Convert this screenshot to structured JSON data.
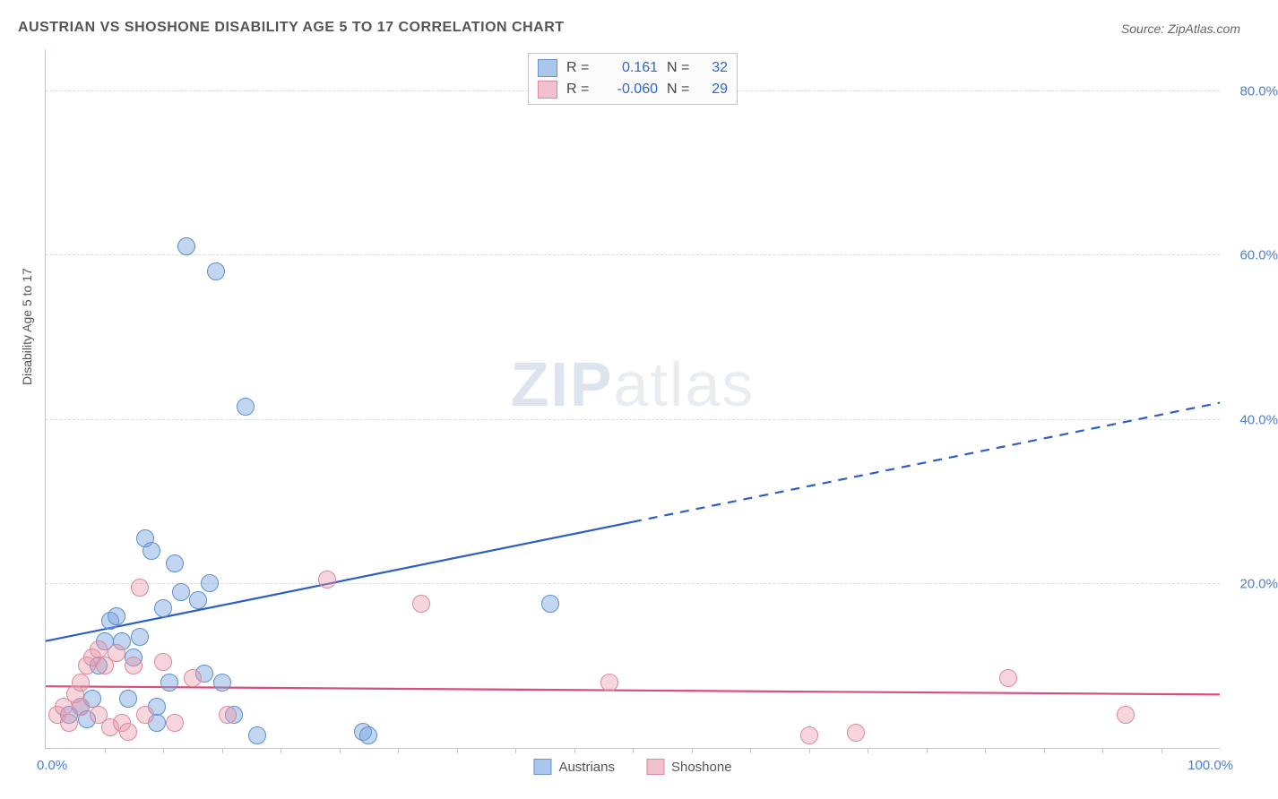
{
  "title": "AUSTRIAN VS SHOSHONE DISABILITY AGE 5 TO 17 CORRELATION CHART",
  "source": "Source: ZipAtlas.com",
  "y_axis_label": "Disability Age 5 to 17",
  "watermark_a": "ZIP",
  "watermark_b": "atlas",
  "chart": {
    "type": "scatter",
    "xlim": [
      0,
      100
    ],
    "ylim": [
      0,
      85
    ],
    "x_min_label": "0.0%",
    "x_max_label": "100.0%",
    "y_ticks": [
      {
        "v": 20,
        "label": "20.0%"
      },
      {
        "v": 40,
        "label": "40.0%"
      },
      {
        "v": 60,
        "label": "60.0%"
      },
      {
        "v": 80,
        "label": "80.0%"
      }
    ],
    "x_tick_step": 5,
    "grid_color": "#dcdcdc",
    "background_color": "#ffffff",
    "marker_radius": 9,
    "marker_border_width": 1,
    "series": [
      {
        "name": "Austrians",
        "fill": "rgba(120,165,225,0.45)",
        "stroke": "#5f8fce",
        "swatch_fill": "#aac6ea",
        "swatch_stroke": "#6a93cf",
        "r_value": "0.161",
        "n_value": "32",
        "trend": {
          "color": "#2b5fc1",
          "width": 2.2,
          "solid_from": {
            "x": 0,
            "y": 13
          },
          "solid_to": {
            "x": 50,
            "y": 27.5
          },
          "dashed_to": {
            "x": 100,
            "y": 42
          }
        },
        "points": [
          {
            "x": 2,
            "y": 4
          },
          {
            "x": 3,
            "y": 5
          },
          {
            "x": 3.5,
            "y": 3.5
          },
          {
            "x": 4,
            "y": 6
          },
          {
            "x": 4.5,
            "y": 10
          },
          {
            "x": 5,
            "y": 13
          },
          {
            "x": 5.5,
            "y": 15.5
          },
          {
            "x": 6,
            "y": 16
          },
          {
            "x": 6.5,
            "y": 13
          },
          {
            "x": 7,
            "y": 6
          },
          {
            "x": 7.5,
            "y": 11
          },
          {
            "x": 8,
            "y": 13.5
          },
          {
            "x": 8.5,
            "y": 25.5
          },
          {
            "x": 9,
            "y": 24
          },
          {
            "x": 9.5,
            "y": 5
          },
          {
            "x": 9.5,
            "y": 3
          },
          {
            "x": 10,
            "y": 17
          },
          {
            "x": 10.5,
            "y": 8
          },
          {
            "x": 11,
            "y": 22.5
          },
          {
            "x": 11.5,
            "y": 19
          },
          {
            "x": 12,
            "y": 61
          },
          {
            "x": 13,
            "y": 18
          },
          {
            "x": 13.5,
            "y": 9
          },
          {
            "x": 14,
            "y": 20
          },
          {
            "x": 14.5,
            "y": 58
          },
          {
            "x": 15,
            "y": 8
          },
          {
            "x": 16,
            "y": 4
          },
          {
            "x": 17,
            "y": 41.5
          },
          {
            "x": 18,
            "y": 1.5
          },
          {
            "x": 27,
            "y": 2
          },
          {
            "x": 27.5,
            "y": 1.5
          },
          {
            "x": 43,
            "y": 17.5
          }
        ]
      },
      {
        "name": "Shoshone",
        "fill": "rgba(235,150,170,0.40)",
        "stroke": "#d98aa0",
        "swatch_fill": "#f2c1cd",
        "swatch_stroke": "#d98aa0",
        "r_value": "-0.060",
        "n_value": "29",
        "trend": {
          "color": "#d84e78",
          "width": 2.2,
          "solid_from": {
            "x": 0,
            "y": 7.5
          },
          "solid_to": {
            "x": 100,
            "y": 6.5
          },
          "dashed_to": null
        },
        "points": [
          {
            "x": 1,
            "y": 4
          },
          {
            "x": 1.5,
            "y": 5
          },
          {
            "x": 2,
            "y": 3
          },
          {
            "x": 2.5,
            "y": 6.5
          },
          {
            "x": 3,
            "y": 8
          },
          {
            "x": 3,
            "y": 5
          },
          {
            "x": 3.5,
            "y": 10
          },
          {
            "x": 4,
            "y": 11
          },
          {
            "x": 4.5,
            "y": 4
          },
          {
            "x": 4.5,
            "y": 12
          },
          {
            "x": 5,
            "y": 10
          },
          {
            "x": 5.5,
            "y": 2.5
          },
          {
            "x": 6,
            "y": 11.5
          },
          {
            "x": 6.5,
            "y": 3
          },
          {
            "x": 7,
            "y": 2
          },
          {
            "x": 7.5,
            "y": 10
          },
          {
            "x": 8,
            "y": 19.5
          },
          {
            "x": 8.5,
            "y": 4
          },
          {
            "x": 10,
            "y": 10.5
          },
          {
            "x": 11,
            "y": 3
          },
          {
            "x": 12.5,
            "y": 8.5
          },
          {
            "x": 15.5,
            "y": 4
          },
          {
            "x": 24,
            "y": 20.5
          },
          {
            "x": 32,
            "y": 17.5
          },
          {
            "x": 48,
            "y": 8
          },
          {
            "x": 65,
            "y": 1.5
          },
          {
            "x": 69,
            "y": 1.8
          },
          {
            "x": 82,
            "y": 8.5
          },
          {
            "x": 92,
            "y": 4
          }
        ]
      }
    ]
  },
  "legend_top": {
    "r_label": "R =",
    "n_label": "N ="
  }
}
